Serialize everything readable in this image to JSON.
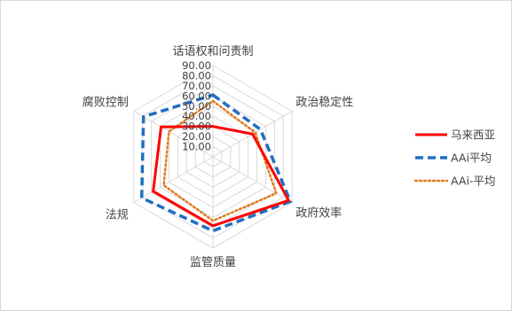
{
  "chart_data": {
    "type": "radar",
    "title": "",
    "categories": [
      "话语权和问责制",
      "政治稳定性",
      "政府效率",
      "监管质量",
      "法规",
      "腐败控制"
    ],
    "rlim": [
      0,
      90
    ],
    "tick_values": [
      10,
      20,
      30,
      40,
      50,
      60,
      70,
      80,
      90
    ],
    "tick_labels": [
      "10.00",
      "20.00",
      "30.00",
      "40.00",
      "50.00",
      "60.00",
      "70.00",
      "80.00",
      "90.00"
    ],
    "grid": true,
    "legend_position": "right",
    "series": [
      {
        "name": "马来西亚",
        "values": [
          30,
          45,
          86,
          68,
          68,
          59
        ],
        "color": "#ff0000",
        "line": "solid"
      },
      {
        "name": "AAi平均",
        "values": [
          61,
          54,
          88,
          73,
          81,
          79
        ],
        "color": "#1f6fbf",
        "line": "dashed"
      },
      {
        "name": "AAi-平均",
        "values": [
          55,
          48,
          72,
          63,
          56,
          50
        ],
        "color": "#e07b20",
        "line": "dotted"
      }
    ]
  }
}
